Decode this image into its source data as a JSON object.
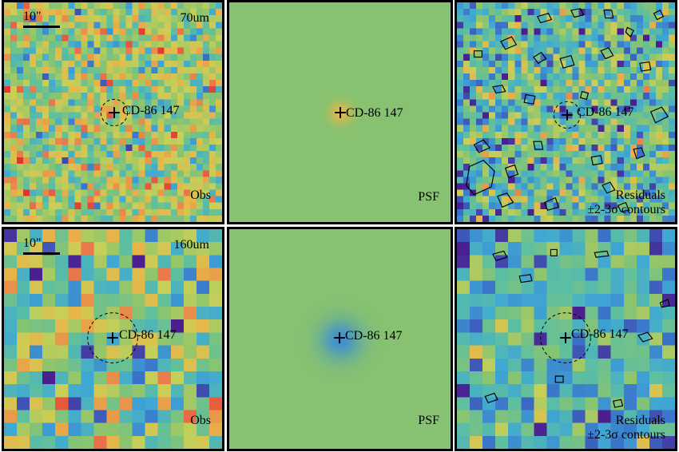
{
  "figure": {
    "rows": [
      {
        "wavelength_label": "70um",
        "scale_label": "10\"",
        "panels": [
          {
            "label": "Obs",
            "source_name": "CD-86 147"
          },
          {
            "label": "PSF",
            "source_name": "CD-86 147"
          },
          {
            "label_line1": "Residuals",
            "label_line2": "±2-3σ contours",
            "source_name": "CD-86 147"
          }
        ]
      },
      {
        "wavelength_label": "160um",
        "scale_label": "10\"",
        "panels": [
          {
            "label": "Obs",
            "source_name": "CD-86 147"
          },
          {
            "label": "PSF",
            "source_name": "CD-86 147"
          },
          {
            "label_line1": "Residuals",
            "label_line2": "±2-3σ contours",
            "source_name": "CD-86 147"
          }
        ]
      }
    ],
    "colormap": [
      "#4b1f8f",
      "#3a6fc9",
      "#3fa8d4",
      "#5dbfa0",
      "#8cc46d",
      "#c8cf57",
      "#e8b449",
      "#e9744a",
      "#e0352f"
    ],
    "psf_background": "#86c271"
  }
}
